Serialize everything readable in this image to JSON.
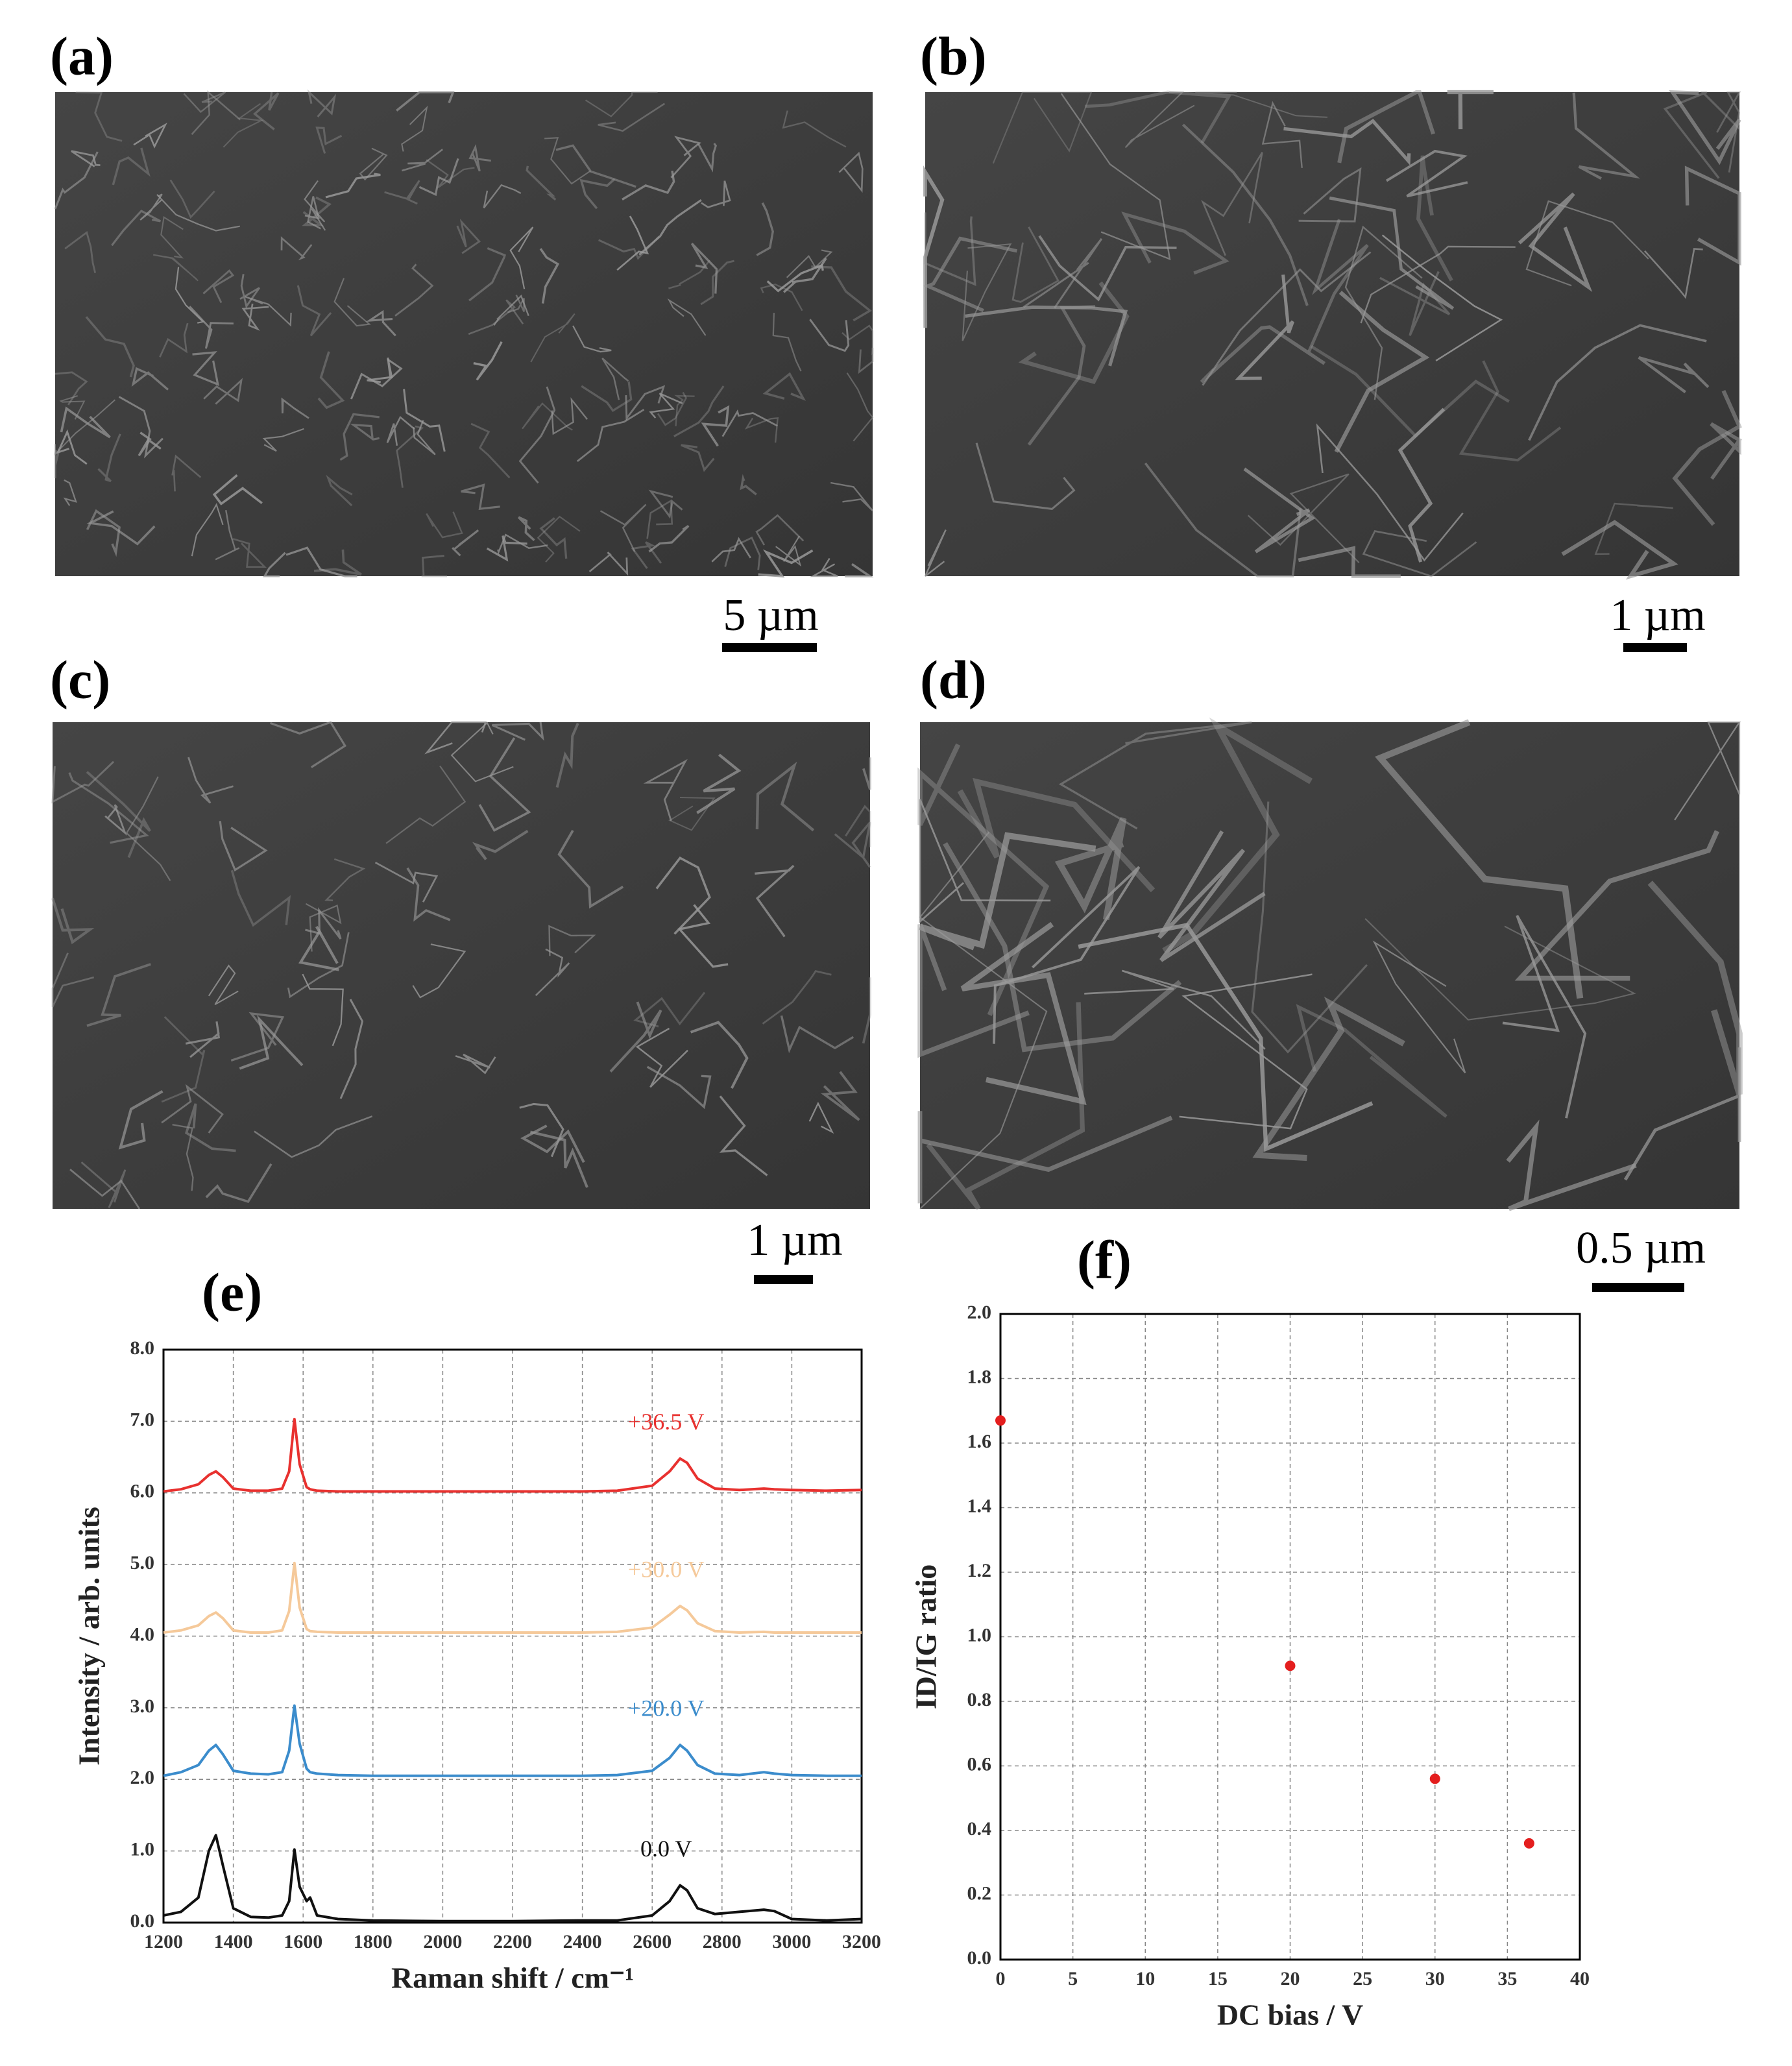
{
  "panels": [
    {
      "label": "(a)",
      "scale_bar": "5 µm"
    },
    {
      "label": "(b)",
      "scale_bar": "1 µm"
    },
    {
      "label": "(c)",
      "scale_bar": "1 µm"
    },
    {
      "label": "(d)",
      "scale_bar": "0.5 µm"
    }
  ],
  "chart_data": [
    {
      "type": "line",
      "title": "(e)",
      "x_label": "Raman shift / cm⁻¹",
      "y_label": "Intensity / arb. units",
      "x": [
        1200,
        1250,
        1300,
        1330,
        1350,
        1370,
        1400,
        1450,
        1500,
        1540,
        1560,
        1575,
        1590,
        1610,
        1620,
        1640,
        1700,
        1800,
        2000,
        2200,
        2400,
        2500,
        2600,
        2650,
        2680,
        2700,
        2730,
        2780,
        2850,
        2920,
        2950,
        3000,
        3100,
        3200
      ],
      "series": [
        {
          "name": "+36.5 V",
          "color": "#e8312f",
          "values": [
            6.02,
            6.05,
            6.12,
            6.25,
            6.3,
            6.22,
            6.06,
            6.03,
            6.03,
            6.06,
            6.3,
            7.03,
            6.4,
            6.08,
            6.05,
            6.03,
            6.02,
            6.02,
            6.02,
            6.02,
            6.02,
            6.03,
            6.1,
            6.3,
            6.48,
            6.42,
            6.2,
            6.06,
            6.04,
            6.06,
            6.05,
            6.04,
            6.03,
            6.04
          ]
        },
        {
          "name": "+30.0 V",
          "color": "#f5c99a",
          "values": [
            4.05,
            4.08,
            4.15,
            4.28,
            4.33,
            4.25,
            4.08,
            4.05,
            4.05,
            4.08,
            4.35,
            5.02,
            4.4,
            4.1,
            4.07,
            4.06,
            4.05,
            4.05,
            4.05,
            4.05,
            4.05,
            4.06,
            4.12,
            4.3,
            4.42,
            4.36,
            4.18,
            4.07,
            4.05,
            4.06,
            4.05,
            4.05,
            4.05,
            4.05
          ]
        },
        {
          "name": "+20.0 V",
          "color": "#3b8ccc",
          "values": [
            2.05,
            2.1,
            2.2,
            2.4,
            2.48,
            2.35,
            2.12,
            2.08,
            2.07,
            2.1,
            2.4,
            3.03,
            2.5,
            2.15,
            2.1,
            2.08,
            2.06,
            2.05,
            2.05,
            2.05,
            2.05,
            2.06,
            2.12,
            2.3,
            2.48,
            2.4,
            2.2,
            2.08,
            2.06,
            2.1,
            2.08,
            2.06,
            2.05,
            2.05
          ]
        },
        {
          "name": "0.0 V",
          "color": "#111111",
          "values": [
            0.1,
            0.15,
            0.35,
            1.0,
            1.22,
            0.8,
            0.2,
            0.08,
            0.07,
            0.1,
            0.3,
            1.02,
            0.5,
            0.3,
            0.35,
            0.1,
            0.05,
            0.03,
            0.02,
            0.02,
            0.03,
            0.03,
            0.1,
            0.3,
            0.52,
            0.45,
            0.2,
            0.12,
            0.15,
            0.18,
            0.16,
            0.05,
            0.03,
            0.05
          ]
        }
      ],
      "xlim": [
        1200,
        3200
      ],
      "xticks": [
        1200,
        1400,
        1600,
        1800,
        2000,
        2200,
        2400,
        2600,
        2800,
        3000,
        3200
      ],
      "ylim": [
        0,
        8
      ],
      "yticks": [
        {
          "value": 0,
          "label": "0.0"
        },
        {
          "value": 1,
          "label": "1.0"
        },
        {
          "value": 2,
          "label": "2.0"
        },
        {
          "value": 3,
          "label": "3.0"
        },
        {
          "value": 4,
          "label": "4.0"
        },
        {
          "value": 5,
          "label": "5.0"
        },
        {
          "value": 6,
          "label": "6.0"
        },
        {
          "value": 7,
          "label": "7.0"
        },
        {
          "value": 8,
          "label": "8.0"
        }
      ],
      "grid": true
    },
    {
      "type": "scatter",
      "title": "(f)",
      "x_label": "DC bias / V",
      "y_label": "ID/IG ratio",
      "color": "#e41e1e",
      "x": [
        0,
        20,
        30,
        36.5
      ],
      "values": [
        1.67,
        0.91,
        0.56,
        0.36
      ],
      "xlim": [
        0,
        40
      ],
      "xticks": [
        0,
        5,
        10,
        15,
        20,
        25,
        30,
        35,
        40
      ],
      "ylim": [
        0,
        2
      ],
      "yticks": [
        {
          "value": 0,
          "label": "0.0"
        },
        {
          "value": 0.2,
          "label": "0.2"
        },
        {
          "value": 0.4,
          "label": "0.4"
        },
        {
          "value": 0.6,
          "label": "0.6"
        },
        {
          "value": 0.8,
          "label": "0.8"
        },
        {
          "value": 1,
          "label": "1.0"
        },
        {
          "value": 1.2,
          "label": "1.2"
        },
        {
          "value": 1.4,
          "label": "1.4"
        },
        {
          "value": 1.6,
          "label": "1.6"
        },
        {
          "value": 1.8,
          "label": "1.8"
        },
        {
          "value": 2,
          "label": "2.0"
        }
      ],
      "grid": true
    }
  ]
}
